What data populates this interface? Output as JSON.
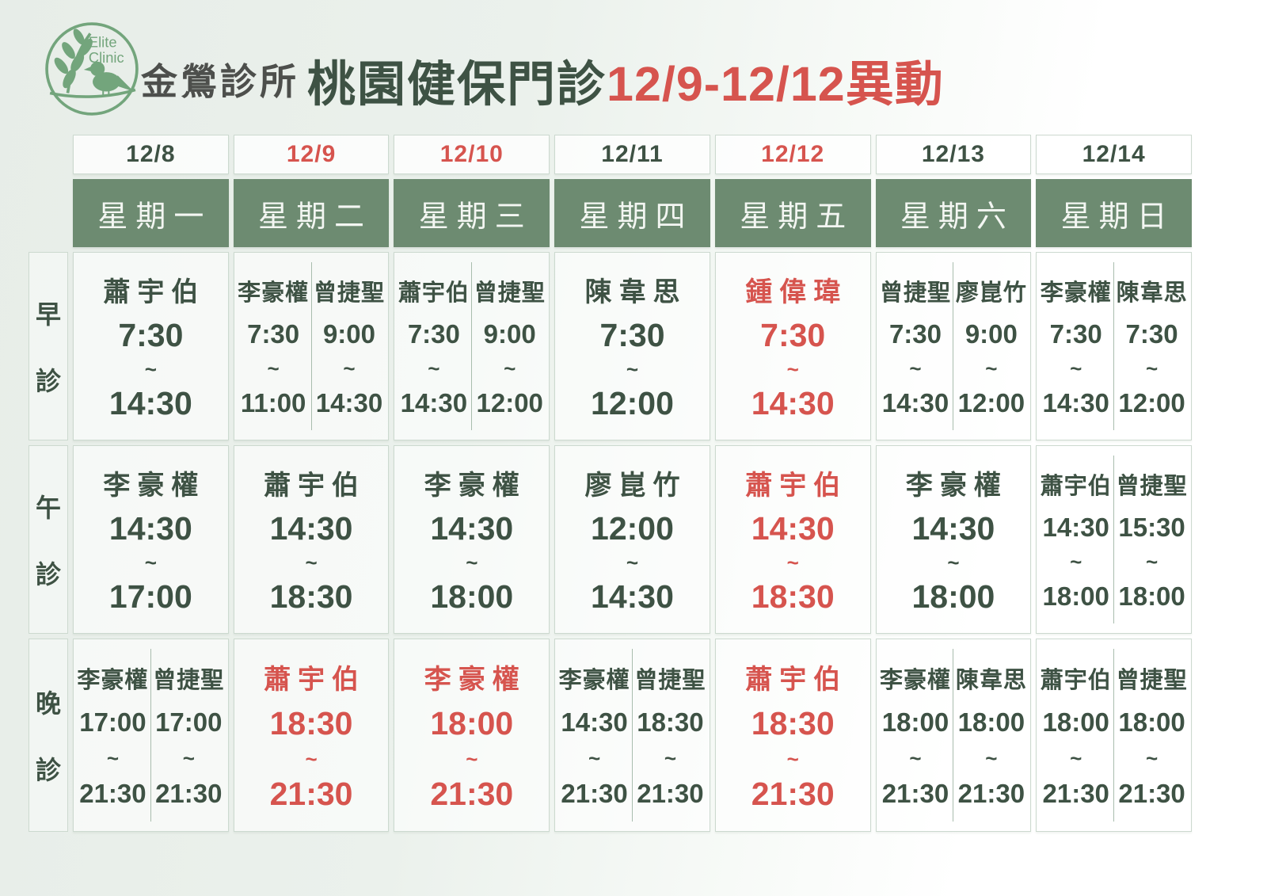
{
  "header": {
    "logo_line1": "Elite",
    "logo_line2": "Clinic",
    "clinic_name": "金鶯診所",
    "dept_title": "桃園健保門診",
    "change_note": "12/9-12/12異動"
  },
  "separator": "~",
  "colors": {
    "dark_green_text": "#3e5244",
    "red_text": "#d6544e",
    "weekday_green_bg": "#6d8b71",
    "logo_green": "#73a57c",
    "cell_border": "#ccd9cf"
  },
  "days": [
    {
      "date": "12/8",
      "weekday": "星期一",
      "date_red": false
    },
    {
      "date": "12/9",
      "weekday": "星期二",
      "date_red": true
    },
    {
      "date": "12/10",
      "weekday": "星期三",
      "date_red": true
    },
    {
      "date": "12/11",
      "weekday": "星期四",
      "date_red": false
    },
    {
      "date": "12/12",
      "weekday": "星期五",
      "date_red": true
    },
    {
      "date": "12/13",
      "weekday": "星期六",
      "date_red": false
    },
    {
      "date": "12/14",
      "weekday": "星期日",
      "date_red": false
    }
  ],
  "sessions": [
    {
      "label": "早診",
      "cells": [
        {
          "red": false,
          "slots": [
            {
              "doctor": "蕭宇伯",
              "start": "7:30",
              "end": "14:30"
            }
          ]
        },
        {
          "red": false,
          "slots": [
            {
              "doctor": "李豪權",
              "start": "7:30",
              "end": "11:00"
            },
            {
              "doctor": "曾捷聖",
              "start": "9:00",
              "end": "14:30"
            }
          ]
        },
        {
          "red": false,
          "slots": [
            {
              "doctor": "蕭宇伯",
              "start": "7:30",
              "end": "14:30"
            },
            {
              "doctor": "曾捷聖",
              "start": "9:00",
              "end": "12:00"
            }
          ]
        },
        {
          "red": false,
          "slots": [
            {
              "doctor": "陳韋思",
              "start": "7:30",
              "end": "12:00"
            }
          ]
        },
        {
          "red": true,
          "slots": [
            {
              "doctor": "鍾偉瑋",
              "start": "7:30",
              "end": "14:30"
            }
          ]
        },
        {
          "red": false,
          "slots": [
            {
              "doctor": "曾捷聖",
              "start": "7:30",
              "end": "14:30"
            },
            {
              "doctor": "廖崑竹",
              "start": "9:00",
              "end": "12:00"
            }
          ]
        },
        {
          "red": false,
          "slots": [
            {
              "doctor": "李豪權",
              "start": "7:30",
              "end": "14:30"
            },
            {
              "doctor": "陳韋思",
              "start": "7:30",
              "end": "12:00"
            }
          ]
        }
      ]
    },
    {
      "label": "午診",
      "cells": [
        {
          "red": false,
          "slots": [
            {
              "doctor": "李豪權",
              "start": "14:30",
              "end": "17:00"
            }
          ]
        },
        {
          "red": false,
          "slots": [
            {
              "doctor": "蕭宇伯",
              "start": "14:30",
              "end": "18:30"
            }
          ]
        },
        {
          "red": false,
          "slots": [
            {
              "doctor": "李豪權",
              "start": "14:30",
              "end": "18:00"
            }
          ]
        },
        {
          "red": false,
          "slots": [
            {
              "doctor": "廖崑竹",
              "start": "12:00",
              "end": "14:30"
            }
          ]
        },
        {
          "red": true,
          "slots": [
            {
              "doctor": "蕭宇伯",
              "start": "14:30",
              "end": "18:30"
            }
          ]
        },
        {
          "red": false,
          "slots": [
            {
              "doctor": "李豪權",
              "start": "14:30",
              "end": "18:00"
            }
          ]
        },
        {
          "red": false,
          "slots": [
            {
              "doctor": "蕭宇伯",
              "start": "14:30",
              "end": "18:00"
            },
            {
              "doctor": "曾捷聖",
              "start": "15:30",
              "end": "18:00"
            }
          ]
        }
      ]
    },
    {
      "label": "晚診",
      "cells": [
        {
          "red": false,
          "slots": [
            {
              "doctor": "李豪權",
              "start": "17:00",
              "end": "21:30"
            },
            {
              "doctor": "曾捷聖",
              "start": "17:00",
              "end": "21:30"
            }
          ]
        },
        {
          "red": true,
          "slots": [
            {
              "doctor": "蕭宇伯",
              "start": "18:30",
              "end": "21:30"
            }
          ]
        },
        {
          "red": true,
          "slots": [
            {
              "doctor": "李豪權",
              "start": "18:00",
              "end": "21:30"
            }
          ]
        },
        {
          "red": false,
          "slots": [
            {
              "doctor": "李豪權",
              "start": "14:30",
              "end": "21:30"
            },
            {
              "doctor": "曾捷聖",
              "start": "18:30",
              "end": "21:30"
            }
          ]
        },
        {
          "red": true,
          "slots": [
            {
              "doctor": "蕭宇伯",
              "start": "18:30",
              "end": "21:30"
            }
          ]
        },
        {
          "red": false,
          "slots": [
            {
              "doctor": "李豪權",
              "start": "18:00",
              "end": "21:30"
            },
            {
              "doctor": "陳韋思",
              "start": "18:00",
              "end": "21:30"
            }
          ]
        },
        {
          "red": false,
          "slots": [
            {
              "doctor": "蕭宇伯",
              "start": "18:00",
              "end": "21:30"
            },
            {
              "doctor": "曾捷聖",
              "start": "18:00",
              "end": "21:30"
            }
          ]
        }
      ]
    }
  ]
}
